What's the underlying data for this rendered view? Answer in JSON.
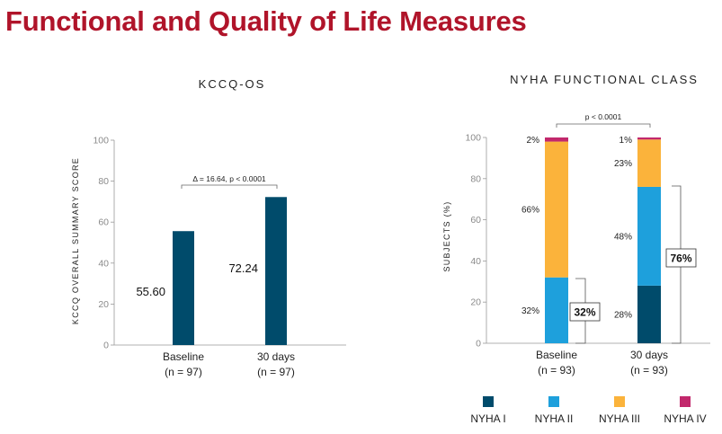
{
  "title": "Functional and Quality of Life Measures",
  "chart_data": [
    {
      "type": "bar",
      "title": "KCCQ-OS",
      "ylabel": "KCCQ OVERALL SUMMARY SCORE",
      "ylim": [
        0,
        100
      ],
      "yticks": [
        "0",
        "20",
        "40",
        "60",
        "80",
        "100"
      ],
      "categories": [
        {
          "label": "Baseline",
          "n": "(n = 97)"
        },
        {
          "label": "30 days",
          "n": "(n = 97)"
        }
      ],
      "values": [
        55.6,
        72.24
      ],
      "value_labels": [
        "55.60",
        "72.24"
      ],
      "color": "#004b6b",
      "annotation": "Δ = 16.64, p < 0.0001"
    },
    {
      "type": "bar",
      "stacked": true,
      "title": "NYHA FUNCTIONAL CLASS",
      "ylabel": "SUBJECTS (%)",
      "ylim": [
        0,
        100
      ],
      "yticks": [
        "0",
        "20",
        "40",
        "60",
        "80",
        "100"
      ],
      "categories": [
        {
          "label": "Baseline",
          "n": "(n = 93)"
        },
        {
          "label": "30 days",
          "n": "(n = 93)"
        }
      ],
      "series": [
        {
          "name": "NYHA I",
          "color": "#004b6b",
          "values": [
            0,
            28
          ],
          "labels": [
            "",
            "28%"
          ]
        },
        {
          "name": "NYHA II",
          "color": "#1ea0dc",
          "values": [
            32,
            48
          ],
          "labels": [
            "32%",
            "48%"
          ]
        },
        {
          "name": "NYHA III",
          "color": "#fbb33b",
          "values": [
            66,
            23
          ],
          "labels": [
            "66%",
            "23%"
          ]
        },
        {
          "name": "NYHA IV",
          "color": "#c2286c",
          "values": [
            2,
            1
          ],
          "labels": [
            "2%",
            "1%"
          ]
        }
      ],
      "brackets": [
        "32%",
        "76%"
      ],
      "annotation": "p < 0.0001",
      "legend_position": "bottom"
    }
  ]
}
